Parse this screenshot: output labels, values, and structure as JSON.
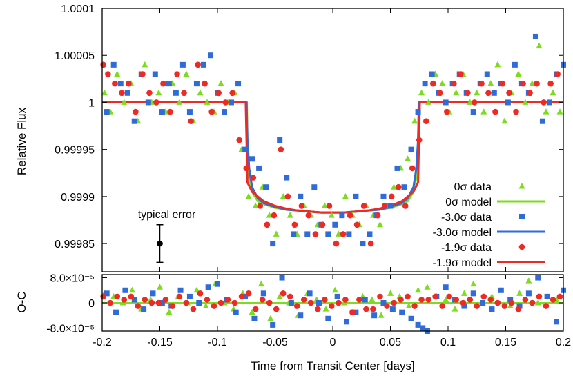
{
  "chart_data": {
    "type": "scatter",
    "x_ticks": [
      "-0.2",
      "-0.15",
      "-0.1",
      "-0.05",
      "0",
      "0.05",
      "0.1",
      "0.15",
      "0.2"
    ],
    "xlim": [
      -0.2,
      0.2
    ],
    "xlabel": "Time from Transit Center [days]",
    "panels": [
      {
        "id": "flux",
        "ylabel": "Relative Flux",
        "ylim": [
          0.99982,
          1.0001
        ],
        "y_ticks": [
          {
            "value": 1.0001,
            "label": "1.0001"
          },
          {
            "value": 1.00005,
            "label": "1.00005"
          },
          {
            "value": 1.0,
            "label": "1"
          },
          {
            "value": 0.99995,
            "label": "0.99995"
          },
          {
            "value": 0.9999,
            "label": "0.9999"
          },
          {
            "value": 0.99985,
            "label": "0.99985"
          }
        ],
        "annotation": {
          "text": "typical error",
          "x": -0.15,
          "y": 0.99985,
          "error": 2e-05
        }
      },
      {
        "id": "residuals",
        "ylabel": "O-C",
        "ylim": [
          -9e-05,
          9e-05
        ],
        "y_ticks": [
          {
            "value": 8e-05,
            "label": "8.0×10⁻⁵"
          },
          {
            "value": 0.0,
            "label": "0"
          },
          {
            "value": -8e-05,
            "label": "-8.0×10⁻⁵"
          }
        ]
      }
    ],
    "legend": {
      "placement": "bottom-right of upper panel",
      "entries": [
        {
          "label": "0σ data",
          "kind": "marker",
          "marker": "triangle",
          "color": "#7ddc1f"
        },
        {
          "label": "0σ model",
          "kind": "line",
          "color": "#7ddc1f"
        },
        {
          "label": "-3.0σ data",
          "kind": "marker",
          "marker": "square",
          "color": "#2f6bd9"
        },
        {
          "label": "-3.0σ model",
          "kind": "line",
          "color": "#2f6bd9"
        },
        {
          "label": "-1.9σ data",
          "kind": "marker",
          "marker": "circle",
          "color": "#ee2a24"
        },
        {
          "label": "-1.9σ model",
          "kind": "line",
          "color": "#ee2a24"
        }
      ]
    },
    "models": [
      {
        "label": "0σ model",
        "color": "#7ddc1f",
        "x": [
          -0.2,
          -0.0745,
          -0.074,
          -0.0725,
          -0.07,
          -0.065,
          -0.06,
          -0.05,
          -0.04,
          -0.03,
          -0.02,
          -0.01,
          0,
          0.01,
          0.02,
          0.03,
          0.04,
          0.05,
          0.06,
          0.065,
          0.07,
          0.0725,
          0.074,
          0.0745,
          0.2
        ],
        "y": [
          1.0,
          1.0,
          0.99995,
          0.99992,
          0.999905,
          0.999895,
          0.999892,
          0.999888,
          0.999886,
          0.999885,
          0.999884,
          0.999883,
          0.999883,
          0.999883,
          0.999884,
          0.999885,
          0.999886,
          0.999888,
          0.999892,
          0.999895,
          0.999905,
          0.99992,
          0.99995,
          1.0,
          1.0
        ]
      },
      {
        "label": "-3.0σ model",
        "color": "#2f6bd9",
        "x": [
          -0.2,
          -0.0748,
          -0.074,
          -0.0725,
          -0.07,
          -0.065,
          -0.06,
          -0.05,
          -0.04,
          -0.03,
          -0.02,
          -0.01,
          0,
          0.01,
          0.02,
          0.03,
          0.04,
          0.05,
          0.06,
          0.065,
          0.07,
          0.0725,
          0.074,
          0.0748,
          0.2
        ],
        "y": [
          1.0,
          1.0,
          0.99996,
          0.99993,
          0.99991,
          0.999898,
          0.999893,
          0.999889,
          0.999886,
          0.999885,
          0.999884,
          0.999883,
          0.999883,
          0.999883,
          0.999884,
          0.999885,
          0.999886,
          0.999889,
          0.999893,
          0.999898,
          0.99991,
          0.99993,
          0.99996,
          1.0,
          1.0
        ]
      },
      {
        "label": "-1.9σ model",
        "color": "#ee2a24",
        "x": [
          -0.2,
          -0.0755,
          -0.074,
          -0.07,
          -0.065,
          -0.06,
          -0.05,
          -0.04,
          -0.03,
          -0.02,
          -0.01,
          0,
          0.01,
          0.02,
          0.03,
          0.04,
          0.05,
          0.06,
          0.065,
          0.07,
          0.074,
          0.0755,
          0.2
        ],
        "y": [
          1.0,
          1.0,
          0.999915,
          0.999905,
          0.9999,
          0.999895,
          0.99989,
          0.999887,
          0.999885,
          0.999884,
          0.999883,
          0.999883,
          0.999883,
          0.999884,
          0.999885,
          0.999887,
          0.99989,
          0.999895,
          0.9999,
          0.999905,
          0.999915,
          1.0,
          1.0
        ]
      }
    ],
    "series": [
      {
        "name": "0σ data",
        "marker": "triangle",
        "color": "#7ddc1f",
        "x": [
          -0.198,
          -0.193,
          -0.187,
          -0.181,
          -0.175,
          -0.169,
          -0.163,
          -0.157,
          -0.151,
          -0.145,
          -0.139,
          -0.133,
          -0.127,
          -0.121,
          -0.115,
          -0.109,
          -0.103,
          -0.097,
          -0.091,
          -0.085,
          -0.079,
          -0.073,
          -0.067,
          -0.061,
          -0.055,
          -0.049,
          -0.043,
          -0.037,
          -0.031,
          -0.025,
          -0.019,
          -0.013,
          -0.007,
          -0.001,
          0.005,
          0.011,
          0.017,
          0.023,
          0.029,
          0.035,
          0.041,
          0.047,
          0.053,
          0.059,
          0.065,
          0.071,
          0.077,
          0.083,
          0.089,
          0.095,
          0.101,
          0.107,
          0.113,
          0.119,
          0.125,
          0.131,
          0.137,
          0.143,
          0.149,
          0.155,
          0.161,
          0.167,
          0.173,
          0.179,
          0.185,
          0.191,
          0.197
        ],
        "y": [
          1.00001,
          0.99999,
          1.00003,
          1.0,
          1.00002,
          0.99998,
          1.00004,
          1.0,
          1.00001,
          0.99999,
          1.00002,
          1.0,
          1.00003,
          0.99998,
          1.00001,
          1.0,
          0.99999,
          1.00002,
          1.0,
          1.00001,
          0.99995,
          0.9999,
          0.99989,
          0.99991,
          0.99988,
          0.99986,
          0.9999,
          0.99988,
          0.99986,
          0.99989,
          0.99988,
          0.99987,
          0.99989,
          0.99988,
          0.99986,
          0.9999,
          0.99988,
          0.99987,
          0.99989,
          0.99988,
          0.99987,
          0.99989,
          0.99991,
          0.99993,
          0.99994,
          0.99998,
          1.00001,
          1.0,
          1.00003,
          1.00002,
          0.99999,
          1.00001,
          1.00003,
          1.0,
          1.00001,
          0.99999,
          1.00002,
          1.00004,
          0.99998,
          1.00001,
          1.00003,
          1.0,
          1.00002,
          1.00006,
          0.99999,
          1.00001,
          0.99999
        ]
      },
      {
        "name": "-3.0σ data",
        "marker": "square",
        "color": "#2f6bd9",
        "x": [
          -0.196,
          -0.19,
          -0.184,
          -0.178,
          -0.172,
          -0.166,
          -0.16,
          -0.154,
          -0.148,
          -0.142,
          -0.136,
          -0.13,
          -0.124,
          -0.118,
          -0.112,
          -0.106,
          -0.1,
          -0.094,
          -0.088,
          -0.082,
          -0.076,
          -0.07,
          -0.064,
          -0.058,
          -0.052,
          -0.046,
          -0.04,
          -0.034,
          -0.028,
          -0.022,
          -0.016,
          -0.01,
          -0.004,
          0.002,
          0.008,
          0.014,
          0.02,
          0.026,
          0.032,
          0.038,
          0.044,
          0.05,
          0.056,
          0.062,
          0.068,
          0.074,
          0.08,
          0.086,
          0.092,
          0.098,
          0.104,
          0.11,
          0.116,
          0.122,
          0.128,
          0.134,
          0.14,
          0.146,
          0.152,
          0.158,
          0.164,
          0.17,
          0.176,
          0.182,
          0.188,
          0.194,
          0.2
        ],
        "y": [
          0.99999,
          1.00004,
          1.00002,
          1.00001,
          0.99998,
          1.00003,
          1.0,
          1.00003,
          0.99999,
          1.00002,
          1.00001,
          1.00004,
          0.99999,
          1.00002,
          1.00004,
          1.00005,
          1.00001,
          0.99999,
          1.0,
          1.00002,
          0.99995,
          0.99994,
          0.99993,
          0.99991,
          0.99985,
          0.99996,
          0.99992,
          0.99986,
          0.9999,
          0.99986,
          0.99991,
          0.99987,
          0.99986,
          0.99987,
          0.99988,
          0.99986,
          0.9999,
          0.99985,
          0.99986,
          0.99988,
          0.9999,
          0.99989,
          0.99993,
          0.99991,
          0.99995,
          0.99999,
          1.00002,
          1.00003,
          1.00001,
          1.0,
          1.00002,
          1.00003,
          1.00001,
          0.99999,
          1.00002,
          1.00003,
          1.00001,
          1.00002,
          1.0,
          1.00004,
          1.00002,
          1.00001,
          1.00007,
          0.99998,
          1.0,
          1.00003,
          1.00004
        ]
      },
      {
        "name": "-1.9σ data",
        "marker": "circle",
        "color": "#ee2a24",
        "x": [
          -0.199,
          -0.195,
          -0.189,
          -0.183,
          -0.177,
          -0.171,
          -0.165,
          -0.159,
          -0.153,
          -0.147,
          -0.141,
          -0.135,
          -0.129,
          -0.123,
          -0.117,
          -0.111,
          -0.105,
          -0.099,
          -0.093,
          -0.087,
          -0.081,
          -0.075,
          -0.069,
          -0.063,
          -0.057,
          -0.051,
          -0.045,
          -0.039,
          -0.033,
          -0.027,
          -0.021,
          -0.015,
          -0.009,
          -0.003,
          0.003,
          0.009,
          0.015,
          0.021,
          0.027,
          0.033,
          0.039,
          0.045,
          0.051,
          0.057,
          0.063,
          0.069,
          0.075,
          0.081,
          0.087,
          0.093,
          0.099,
          0.105,
          0.111,
          0.117,
          0.123,
          0.129,
          0.135,
          0.141,
          0.147,
          0.153,
          0.159,
          0.165,
          0.171,
          0.177,
          0.183,
          0.189,
          0.195
        ],
        "y": [
          1.00004,
          1.00003,
          1.00002,
          1.00001,
          1.00002,
          0.99999,
          1.00003,
          1.00001,
          1.0,
          1.00002,
          0.99999,
          1.00003,
          1.00001,
          0.99998,
          1.00004,
          1.00002,
          0.99999,
          1.00001,
          1.0,
          1.00001,
          0.99996,
          0.99993,
          0.99992,
          0.99989,
          0.99987,
          0.99988,
          0.99995,
          0.9999,
          0.99987,
          0.99989,
          0.99988,
          0.99986,
          0.99987,
          0.99989,
          0.99985,
          0.99986,
          0.99988,
          0.99987,
          0.99989,
          0.99985,
          0.99988,
          0.99989,
          0.9999,
          0.99991,
          0.99989,
          0.99993,
          0.99996,
          0.99998,
          1.00002,
          1.00001,
          0.99999,
          1.00002,
          1.00003,
          1.00001,
          1.0,
          1.00002,
          1.00001,
          0.99999,
          1.00002,
          1.00001,
          0.99999,
          1.00002,
          1.00001,
          1.00002,
          1.0,
          1.00002,
          1.00003
        ]
      }
    ],
    "residuals": [
      {
        "name": "0σ data",
        "marker": "triangle",
        "color": "#7ddc1f",
        "x": [
          -0.198,
          -0.19,
          -0.182,
          -0.174,
          -0.166,
          -0.158,
          -0.15,
          -0.142,
          -0.134,
          -0.126,
          -0.118,
          -0.11,
          -0.102,
          -0.094,
          -0.086,
          -0.078,
          -0.07,
          -0.062,
          -0.054,
          -0.046,
          -0.038,
          -0.03,
          -0.022,
          -0.014,
          -0.006,
          0.002,
          0.01,
          0.018,
          0.026,
          0.034,
          0.042,
          0.05,
          0.058,
          0.066,
          0.074,
          0.082,
          0.09,
          0.098,
          0.106,
          0.114,
          0.122,
          0.13,
          0.138,
          0.146,
          0.154,
          0.162,
          0.17,
          0.178,
          0.186,
          0.194
        ],
        "y": [
          3e-05,
          2e-05,
          0.0,
          4e-05,
          -2e-05,
          1e-05,
          5e-05,
          -3e-05,
          2e-05,
          0.0,
          4e-05,
          -1e-05,
          6e-05,
          0.0,
          -2e-05,
          3e-05,
          -3e-05,
          6e-05,
          -5e-05,
          2e-05,
          0.0,
          -4e-05,
          3e-05,
          1e-05,
          -2e-05,
          4e-05,
          0.0,
          -3e-05,
          2e-05,
          1e-05,
          -4e-05,
          3e-05,
          2e-05,
          -1e-05,
          4e-05,
          5e-05,
          2e-05,
          1e-05,
          -2e-05,
          3e-05,
          6e-05,
          0.0,
          2e-05,
          4e-05,
          -1e-05,
          3e-05,
          7e-05,
          0.0,
          2e-05,
          1e-05
        ]
      },
      {
        "name": "-3.0σ data",
        "marker": "square",
        "color": "#2f6bd9",
        "x": [
          -0.196,
          -0.188,
          -0.18,
          -0.172,
          -0.164,
          -0.156,
          -0.148,
          -0.14,
          -0.132,
          -0.124,
          -0.116,
          -0.108,
          -0.1,
          -0.092,
          -0.084,
          -0.076,
          -0.068,
          -0.06,
          -0.052,
          -0.044,
          -0.036,
          -0.028,
          -0.02,
          -0.012,
          -0.004,
          0.004,
          0.012,
          0.02,
          0.028,
          0.036,
          0.044,
          0.052,
          0.06,
          0.068,
          0.074,
          0.078,
          0.082,
          0.09,
          0.098,
          0.106,
          0.114,
          0.122,
          0.13,
          0.138,
          0.146,
          0.154,
          0.162,
          0.17,
          0.178,
          0.186,
          0.194,
          0.2
        ],
        "y": [
          3e-05,
          -3e-05,
          4e-05,
          1e-05,
          -2e-05,
          3e-05,
          0.0,
          -1e-05,
          4e-05,
          2e-05,
          0.0,
          5e-05,
          6e-05,
          1e-05,
          -3e-05,
          2e-05,
          -5e-05,
          3e-05,
          -7e-05,
          8e-05,
          0.0,
          -4e-05,
          3e-05,
          0.0,
          -5e-05,
          2e-05,
          -6e-05,
          -3e-05,
          1e-05,
          -4e-05,
          0.0,
          -2e-05,
          -3e-05,
          -5e-05,
          -7e-05,
          -8e-05,
          -9e-05,
          2e-05,
          5e-05,
          1e-05,
          -1e-05,
          3e-05,
          0.0,
          -2e-05,
          4e-05,
          1e-05,
          -1e-05,
          3e-05,
          8e-05,
          2e-05,
          -6e-05,
          4e-05
        ]
      },
      {
        "name": "-1.9σ data",
        "marker": "circle",
        "color": "#ee2a24",
        "x": [
          -0.199,
          -0.193,
          -0.187,
          -0.181,
          -0.175,
          -0.169,
          -0.163,
          -0.157,
          -0.151,
          -0.145,
          -0.139,
          -0.133,
          -0.127,
          -0.121,
          -0.115,
          -0.109,
          -0.103,
          -0.097,
          -0.091,
          -0.085,
          -0.079,
          -0.073,
          -0.067,
          -0.061,
          -0.055,
          -0.049,
          -0.043,
          -0.037,
          -0.031,
          -0.025,
          -0.019,
          -0.013,
          -0.007,
          -0.001,
          0.005,
          0.011,
          0.017,
          0.023,
          0.029,
          0.035,
          0.041,
          0.047,
          0.053,
          0.059,
          0.065,
          0.071,
          0.077,
          0.083,
          0.089,
          0.095,
          0.101,
          0.107,
          0.113,
          0.119,
          0.125,
          0.131,
          0.137,
          0.143,
          0.149,
          0.155,
          0.161,
          0.167,
          0.173,
          0.179,
          0.185,
          0.191,
          0.197
        ],
        "y": [
          2e-05,
          0.0,
          2e-05,
          1e-05,
          2e-05,
          -1e-05,
          1e-05,
          0.0,
          0.0,
          1e-05,
          -1e-05,
          2e-05,
          0.0,
          -2e-05,
          3e-05,
          1e-05,
          -1e-05,
          0.0,
          1e-05,
          0.0,
          2e-05,
          3e-05,
          -2e-05,
          1e-05,
          0.0,
          -2e-05,
          3e-05,
          2e-05,
          -1e-05,
          1e-05,
          0.0,
          -2e-05,
          1e-05,
          -1e-05,
          0.0,
          1e-05,
          -3e-05,
          1e-05,
          -2e-05,
          -2e-05,
          2e-05,
          -1e-05,
          0.0,
          1e-05,
          2e-05,
          -1e-05,
          1e-05,
          1e-05,
          2e-05,
          -1e-05,
          2e-05,
          1e-05,
          0.0,
          1e-05,
          -1e-05,
          2e-05,
          1e-05,
          0.0,
          -1e-05,
          0.0,
          -2e-05,
          1e-05,
          0.0,
          2e-05,
          -1e-05,
          1e-05,
          2e-05
        ]
      }
    ]
  }
}
